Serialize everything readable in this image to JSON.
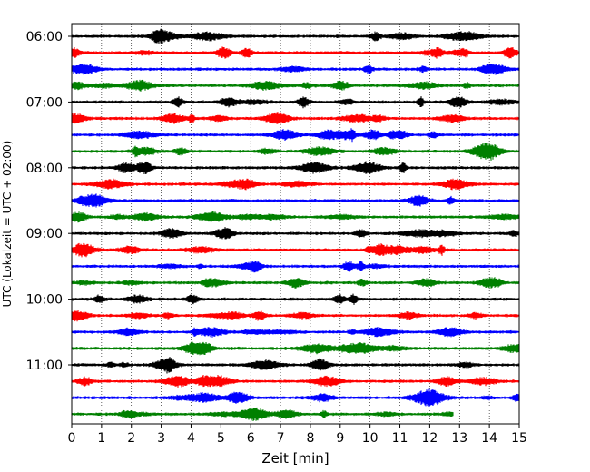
{
  "chart_data": {
    "type": "line",
    "xlabel": "Zeit  [min]",
    "ylabel": "UTC (Lokalzeit = UTC + 02:00)",
    "xlim": [
      0,
      15
    ],
    "x_ticks": [
      0,
      1,
      2,
      3,
      4,
      5,
      6,
      7,
      8,
      9,
      10,
      11,
      12,
      13,
      14,
      15
    ],
    "x_grid": "dotted vertical lines at each minute",
    "y_ticks": [
      "06:00",
      "07:00",
      "08:00",
      "09:00",
      "10:00",
      "11:00"
    ],
    "y_start": "06:00",
    "y_end": "11:45",
    "trace_interval_minutes": 15,
    "trace_colors": [
      "#000000",
      "#ff0000",
      "#0000ff",
      "#008000"
    ],
    "series": [
      {
        "start": "06:00",
        "end_min": 15
      },
      {
        "start": "06:15",
        "end_min": 15
      },
      {
        "start": "06:30",
        "end_min": 15
      },
      {
        "start": "06:45",
        "end_min": 15
      },
      {
        "start": "07:00",
        "end_min": 15
      },
      {
        "start": "07:15",
        "end_min": 15
      },
      {
        "start": "07:30",
        "end_min": 15
      },
      {
        "start": "07:45",
        "end_min": 15
      },
      {
        "start": "08:00",
        "end_min": 15
      },
      {
        "start": "08:15",
        "end_min": 15
      },
      {
        "start": "08:30",
        "end_min": 15
      },
      {
        "start": "08:45",
        "end_min": 15
      },
      {
        "start": "09:00",
        "end_min": 15
      },
      {
        "start": "09:15",
        "end_min": 15
      },
      {
        "start": "09:30",
        "end_min": 15
      },
      {
        "start": "09:45",
        "end_min": 15
      },
      {
        "start": "10:00",
        "end_min": 15
      },
      {
        "start": "10:15",
        "end_min": 15
      },
      {
        "start": "10:30",
        "end_min": 15
      },
      {
        "start": "10:45",
        "end_min": 15
      },
      {
        "start": "11:00",
        "end_min": 15
      },
      {
        "start": "11:15",
        "end_min": 15
      },
      {
        "start": "11:30",
        "end_min": 15
      },
      {
        "start": "11:45",
        "end_min": 12.8
      }
    ]
  }
}
